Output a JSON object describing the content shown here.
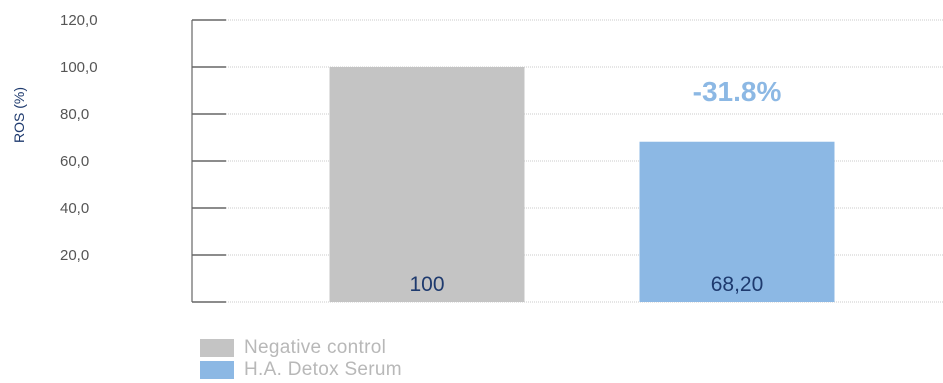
{
  "chart_data": {
    "type": "bar",
    "categories": [
      "Negative control",
      "H.A. Detox Serum"
    ],
    "series": [
      {
        "name": "Negative control",
        "values": [
          100,
          null
        ],
        "color": "#c4c4c4"
      },
      {
        "name": "H.A. Detox Serum",
        "values": [
          null,
          68.2
        ],
        "color": "#8cb8e4"
      }
    ],
    "bar_labels": [
      "100",
      "68,20"
    ],
    "ylabel": "ROS (%)",
    "ylim": [
      0,
      120
    ],
    "yticks": [
      20,
      40,
      60,
      80,
      100,
      120
    ],
    "ytick_labels": [
      "20,0",
      "40,0",
      "60,0",
      "80,0",
      "100,0",
      "120,0"
    ],
    "annotations": [
      {
        "text": "-31.8%",
        "color": "#8cb8e4"
      }
    ],
    "grid": true,
    "legend": "bottom-left"
  },
  "colors": {
    "axis": "#666666",
    "grid": "#bbbbbb",
    "bar_label_text": "#1e3a6e",
    "tick_text": "#555555",
    "ylabel_text": "#1e3a6e"
  }
}
